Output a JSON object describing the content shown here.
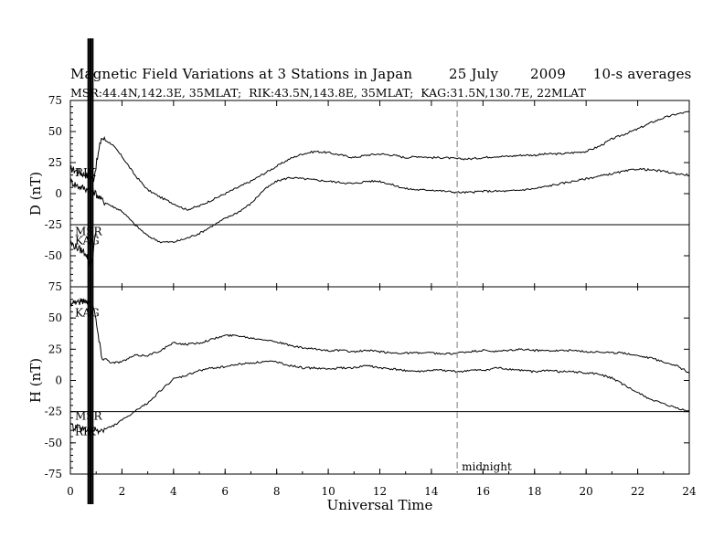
{
  "title": {
    "main": "Magnetic Field Variations at 3 Stations in Japan        25 July       2009      10-s averages",
    "stations": "MSR:44.4N,142.3E, 35MLAT;  RIK:43.5N,143.8E, 35MLAT;  KAG:31.5N,130.7E, 22MLAT"
  },
  "chart_data": [
    {
      "type": "line",
      "panel": "D",
      "ylabel": "D (nT)",
      "ylim": [
        -75,
        75
      ],
      "yticks": [
        75,
        50,
        25,
        0,
        -25,
        -50,
        -75
      ],
      "reference_line": -25,
      "station_labels": [
        "RIK",
        "MSR",
        "KAG"
      ],
      "series": [
        {
          "name": "RIK",
          "x": [
            0,
            0.3,
            0.6,
            0.9,
            1.2,
            1.6,
            2,
            2.5,
            3,
            3.5,
            4,
            4.5,
            5,
            5.5,
            6,
            6.5,
            7,
            7.5,
            8,
            8.5,
            9,
            9.5,
            10,
            10.5,
            11,
            11.5,
            12,
            12.5,
            13,
            13.5,
            14,
            14.5,
            15,
            15.5,
            16,
            16.5,
            17,
            17.5,
            18,
            18.5,
            19,
            19.5,
            20,
            20.5,
            21,
            21.5,
            22,
            22.5,
            23,
            23.5,
            24
          ],
          "y": [
            20,
            18,
            15,
            12,
            45,
            40,
            30,
            15,
            3,
            -3,
            -8,
            -13,
            -10,
            -5,
            0,
            5,
            10,
            16,
            22,
            28,
            32,
            34,
            33,
            31,
            29,
            31,
            32,
            31,
            29,
            30,
            29,
            29,
            28,
            28,
            29,
            30,
            30,
            31,
            31,
            32,
            32,
            33,
            34,
            38,
            44,
            48,
            52,
            57,
            61,
            64,
            66
          ]
        },
        {
          "name": "MSR",
          "x": [
            0,
            0.3,
            0.6,
            0.9,
            1.2,
            1.6,
            2,
            2.5,
            3,
            3.5,
            4,
            4.5,
            5,
            5.5,
            6,
            6.5,
            7,
            7.5,
            8,
            8.5,
            9,
            9.5,
            10,
            10.5,
            11,
            11.5,
            12,
            12.5,
            13,
            13.5,
            14,
            14.5,
            15,
            15.5,
            16,
            16.5,
            17,
            17.5,
            18,
            18.5,
            19,
            19.5,
            20,
            20.5,
            21,
            21.5,
            22,
            22.5,
            23,
            23.5,
            24
          ],
          "y": [
            10,
            6,
            4,
            2,
            -5,
            -10,
            -14,
            -25,
            -34,
            -39,
            -39,
            -36,
            -32,
            -26,
            -20,
            -15,
            -8,
            3,
            10,
            13,
            12,
            11,
            10,
            9,
            8,
            10,
            10,
            7,
            4,
            3,
            3,
            2,
            1,
            1,
            2,
            2,
            2,
            3,
            4,
            6,
            8,
            10,
            12,
            14,
            16,
            18,
            20,
            19,
            18,
            16,
            15
          ]
        },
        {
          "name": "KAG",
          "x": [
            0,
            0.3,
            0.6,
            0.8,
            1.0
          ],
          "y": [
            -40,
            -44,
            -48,
            -58,
            -30
          ]
        }
      ]
    },
    {
      "type": "line",
      "panel": "H",
      "ylabel": "H (nT)",
      "ylim": [
        -75,
        75
      ],
      "yticks": [
        75,
        50,
        25,
        0,
        -25,
        -50,
        -75
      ],
      "reference_line": -25,
      "station_labels": [
        "KAG",
        "MSR",
        "RIK"
      ],
      "series": [
        {
          "name": "KAG",
          "x": [
            0,
            0.3,
            0.6,
            0.9,
            1.2,
            1.6,
            2,
            2.5,
            3,
            3.5,
            4,
            4.5,
            5,
            5.5,
            6,
            6.5,
            7,
            7.5,
            8,
            8.5,
            9,
            9.5,
            10,
            10.5,
            11,
            11.5,
            12,
            12.5,
            13,
            13.5,
            14,
            14.5,
            15,
            15.5,
            16,
            16.5,
            17,
            17.5,
            18,
            18.5,
            19,
            19.5,
            20,
            20.5,
            21,
            21.5,
            22,
            22.5,
            23,
            23.5,
            24
          ],
          "y": [
            63,
            63,
            64,
            60,
            20,
            14,
            15,
            20,
            20,
            24,
            30,
            29,
            30,
            33,
            36,
            36,
            34,
            33,
            31,
            28,
            26,
            25,
            24,
            24,
            23,
            24,
            23,
            22,
            22,
            22,
            22,
            21,
            22,
            23,
            24,
            23,
            24,
            25,
            24,
            24,
            24,
            24,
            23,
            23,
            22,
            22,
            20,
            18,
            15,
            12,
            6
          ]
        },
        {
          "name": "MSR",
          "x": [
            0,
            0.3,
            0.6,
            0.9,
            1.2,
            1.6,
            2,
            2.5,
            3,
            3.5,
            4,
            4.5,
            5,
            5.5,
            6,
            6.5,
            7,
            7.5,
            8,
            8.5,
            9,
            9.5,
            10,
            10.5,
            11,
            11.5,
            12,
            12.5,
            13,
            13.5,
            14,
            14.5,
            15,
            15.5,
            16,
            16.5,
            17,
            17.5,
            18,
            18.5,
            19,
            19.5,
            20,
            20.5,
            21,
            21.5,
            22,
            22.5,
            23,
            23.5,
            24
          ],
          "y": [
            -37,
            -38,
            -39,
            -40,
            -40,
            -37,
            -32,
            -25,
            -18,
            -8,
            1,
            4,
            8,
            10,
            11,
            13,
            14,
            15,
            15,
            12,
            10,
            10,
            9,
            10,
            10,
            12,
            10,
            9,
            8,
            7,
            8,
            8,
            7,
            8,
            8,
            10,
            9,
            8,
            7,
            8,
            7,
            7,
            6,
            5,
            2,
            -4,
            -10,
            -15,
            -19,
            -22,
            -25
          ]
        }
      ]
    }
  ],
  "x_axis": {
    "label": "Universal Time",
    "range": [
      0,
      24
    ],
    "ticks": [
      "0",
      "2",
      "4",
      "6",
      "8",
      "10",
      "12",
      "14",
      "16",
      "18",
      "20",
      "22",
      "24"
    ]
  },
  "annotation": {
    "midnight_label": "midnight",
    "midnight_x": 15
  },
  "colors": {
    "line": "#000000",
    "midnight": "#999999",
    "background": "#ffffff"
  }
}
